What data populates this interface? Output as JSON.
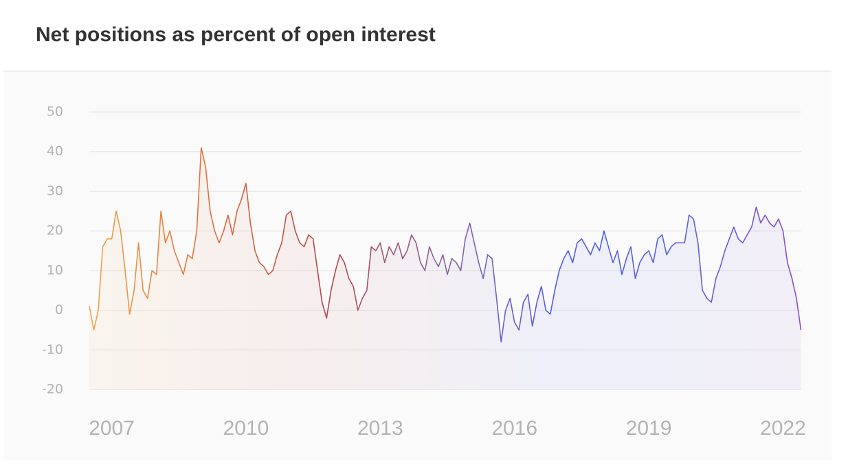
{
  "chart_data": {
    "type": "line",
    "title": "Net positions as percent of open interest",
    "x": [
      2006.5,
      2006.6,
      2006.7,
      2006.8,
      2006.9,
      2007.0,
      2007.1,
      2007.2,
      2007.3,
      2007.4,
      2007.5,
      2007.6,
      2007.7,
      2007.8,
      2007.9,
      2008.0,
      2008.1,
      2008.2,
      2008.3,
      2008.4,
      2008.5,
      2008.6,
      2008.7,
      2008.8,
      2008.9,
      2009.0,
      2009.1,
      2009.2,
      2009.3,
      2009.4,
      2009.5,
      2009.6,
      2009.7,
      2009.8,
      2009.9,
      2010.0,
      2010.1,
      2010.2,
      2010.3,
      2010.4,
      2010.5,
      2010.6,
      2010.7,
      2010.8,
      2010.9,
      2011.0,
      2011.1,
      2011.2,
      2011.3,
      2011.4,
      2011.5,
      2011.6,
      2011.7,
      2011.8,
      2011.9,
      2012.0,
      2012.1,
      2012.2,
      2012.3,
      2012.4,
      2012.5,
      2012.6,
      2012.7,
      2012.8,
      2012.9,
      2013.0,
      2013.1,
      2013.2,
      2013.3,
      2013.4,
      2013.5,
      2013.6,
      2013.7,
      2013.8,
      2013.9,
      2014.0,
      2014.1,
      2014.2,
      2014.3,
      2014.4,
      2014.5,
      2014.6,
      2014.7,
      2014.8,
      2014.9,
      2015.0,
      2015.1,
      2015.2,
      2015.3,
      2015.4,
      2015.5,
      2015.6,
      2015.7,
      2015.8,
      2015.9,
      2016.0,
      2016.1,
      2016.2,
      2016.3,
      2016.4,
      2016.5,
      2016.6,
      2016.7,
      2016.8,
      2016.9,
      2017.0,
      2017.1,
      2017.2,
      2017.3,
      2017.4,
      2017.5,
      2017.6,
      2017.7,
      2017.8,
      2017.9,
      2018.0,
      2018.1,
      2018.2,
      2018.3,
      2018.4,
      2018.5,
      2018.6,
      2018.7,
      2018.8,
      2018.9,
      2019.0,
      2019.1,
      2019.2,
      2019.3,
      2019.4,
      2019.5,
      2019.6,
      2019.7,
      2019.8,
      2019.9,
      2020.0,
      2020.1,
      2020.2,
      2020.3,
      2020.4,
      2020.5,
      2020.6,
      2020.7,
      2020.8,
      2020.9,
      2021.0,
      2021.1,
      2021.2,
      2021.3,
      2021.4,
      2021.5,
      2021.6,
      2021.7,
      2021.8,
      2021.9,
      2022.0,
      2022.1,
      2022.2,
      2022.3,
      2022.4
    ],
    "series": [
      {
        "values": [
          1,
          -5,
          0,
          16,
          18,
          18,
          25,
          20,
          10,
          -1,
          5,
          17,
          5,
          3,
          10,
          9,
          25,
          17,
          20,
          15,
          12,
          9,
          14,
          13,
          20,
          41,
          36,
          25,
          20,
          17,
          20,
          24,
          19,
          25,
          28,
          32,
          22,
          15,
          12,
          11,
          9,
          10,
          14,
          17,
          24,
          25,
          20,
          17,
          16,
          19,
          18,
          10,
          2,
          -2,
          5,
          10,
          14,
          12,
          8,
          6,
          0,
          3,
          5,
          16,
          15,
          17,
          12,
          16,
          14,
          17,
          13,
          15,
          19,
          17,
          12,
          10,
          16,
          13,
          11,
          14,
          9,
          13,
          12,
          10,
          18,
          22,
          17,
          12,
          8,
          14,
          13,
          3,
          -8,
          0,
          3,
          -3,
          -5,
          2,
          4,
          -4,
          2,
          6,
          0,
          -1,
          5,
          10,
          13,
          15,
          12,
          17,
          18,
          16,
          14,
          17,
          15,
          20,
          16,
          12,
          15,
          9,
          13,
          16,
          8,
          12,
          14,
          15,
          12,
          18,
          19,
          14,
          16,
          17,
          17,
          17,
          24,
          23,
          17,
          5,
          3,
          2,
          8,
          11,
          15,
          18,
          21,
          18,
          17,
          19,
          21,
          26,
          22,
          24,
          22,
          21,
          23,
          20,
          12,
          8,
          3,
          -5
        ]
      }
    ],
    "gradient": [
      "#f2a54a",
      "#e0703a",
      "#b8444a",
      "#8a64a0",
      "#4a5ee6",
      "#5a62dc",
      "#8a50c8"
    ],
    "xlim": [
      2006.5,
      2022.5
    ],
    "xticks": [
      2007,
      2010,
      2013,
      2016,
      2019,
      2022
    ],
    "ylim": [
      -20,
      50
    ],
    "yticks": [
      -20,
      -10,
      0,
      10,
      20,
      30,
      40,
      50
    ],
    "grid": true
  }
}
